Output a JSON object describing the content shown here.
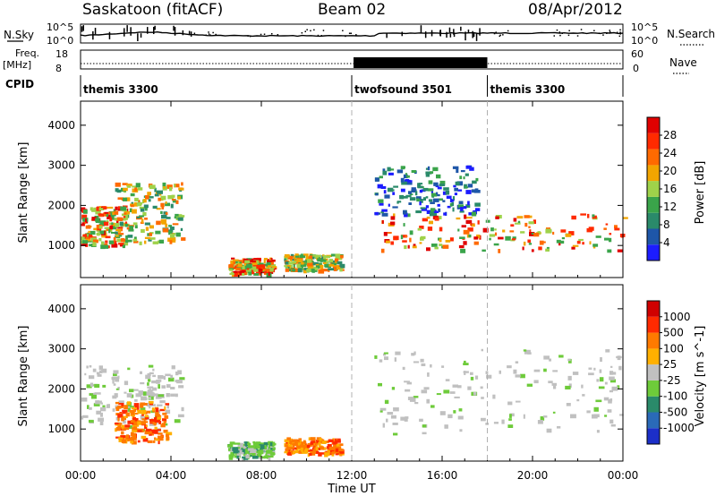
{
  "header": {
    "station": "Saskatoon (fitACF)",
    "beam": "Beam 02",
    "date": "08/Apr/2012"
  },
  "strips": {
    "nsky_label": "N.Sky",
    "nsky_ticks": [
      "10^5",
      "10^0"
    ],
    "nsearch_label": "N.Search",
    "nsearch_ticks": [
      "10^5",
      "10^0"
    ],
    "freq_label_1": "Freq.",
    "freq_label_2": "[MHz]",
    "freq_ticks": [
      "18",
      "8"
    ],
    "nave_label": "Nave",
    "nave_ticks": [
      "60",
      "0"
    ],
    "cpid_label": "CPID",
    "cpid_segments": [
      {
        "label": "themis 3300",
        "start_h": 0,
        "end_h": 12
      },
      {
        "label": "twofsound 3501",
        "start_h": 12,
        "end_h": 18
      },
      {
        "label": "themis 3300",
        "start_h": 18,
        "end_h": 24
      }
    ]
  },
  "chart_data": [
    {
      "type": "heatmap",
      "name": "power",
      "xlabel": "",
      "ylabel": "Slant Range [km]",
      "xlim": [
        0,
        24
      ],
      "ylim": [
        200,
        4600
      ],
      "yticks": [
        1000,
        2000,
        3000,
        4000
      ],
      "colorbar": {
        "label": "Power [dB]",
        "ticks": [
          "4",
          "8",
          "12",
          "16",
          "20",
          "24",
          "28"
        ],
        "colors": [
          "#1c1cff",
          "#1e56a8",
          "#2a8a6a",
          "#3aa44a",
          "#9fd24a",
          "#f2a500",
          "#ff6a00",
          "#ff2a00",
          "#e00000"
        ]
      },
      "echo_bands": [
        {
          "t0": 0.0,
          "t1": 2.0,
          "r0": 1000,
          "r1": 2000,
          "level": "strong"
        },
        {
          "t0": 1.5,
          "t1": 4.5,
          "r0": 1100,
          "r1": 2600,
          "level": "medium"
        },
        {
          "t0": 6.5,
          "t1": 8.5,
          "r0": 300,
          "r1": 700,
          "level": "strong"
        },
        {
          "t0": 9.0,
          "t1": 11.5,
          "r0": 400,
          "r1": 800,
          "level": "medium"
        },
        {
          "t0": 13.2,
          "t1": 24.0,
          "r0": 900,
          "r1": 1800,
          "level": "strong"
        },
        {
          "t0": 13.0,
          "t1": 17.5,
          "r0": 1800,
          "r1": 3000,
          "level": "weak"
        }
      ]
    },
    {
      "type": "heatmap",
      "name": "velocity",
      "xlabel": "Time UT",
      "ylabel": "Slant Range [km]",
      "xlim": [
        0,
        24
      ],
      "ylim": [
        200,
        4600
      ],
      "xticks": [
        "00:00",
        "04:00",
        "08:00",
        "12:00",
        "16:00",
        "20:00",
        "00:00"
      ],
      "yticks": [
        1000,
        2000,
        3000,
        4000
      ],
      "colorbar": {
        "label": "Velocity [m s^-1]",
        "ticks": [
          "1000",
          "500",
          "100",
          "25",
          "-25",
          "-100",
          "-500",
          "-1000"
        ],
        "colors": [
          "#1c2fc8",
          "#2a6ab8",
          "#2a8a6a",
          "#6ecb3a",
          "#c0c0c0",
          "#ffb000",
          "#ff7a00",
          "#ff2a00",
          "#d00000"
        ]
      },
      "echo_bands": [
        {
          "t0": 0.0,
          "t1": 4.5,
          "r0": 1000,
          "r1": 2600,
          "level": "ground"
        },
        {
          "t0": 1.5,
          "t1": 3.8,
          "r0": 700,
          "r1": 1700,
          "level": "away"
        },
        {
          "t0": 6.5,
          "t1": 8.5,
          "r0": 300,
          "r1": 700,
          "level": "toward"
        },
        {
          "t0": 9.0,
          "t1": 11.5,
          "r0": 400,
          "r1": 800,
          "level": "away"
        },
        {
          "t0": 13.0,
          "t1": 24.0,
          "r0": 900,
          "r1": 3000,
          "level": "ground"
        }
      ]
    }
  ]
}
